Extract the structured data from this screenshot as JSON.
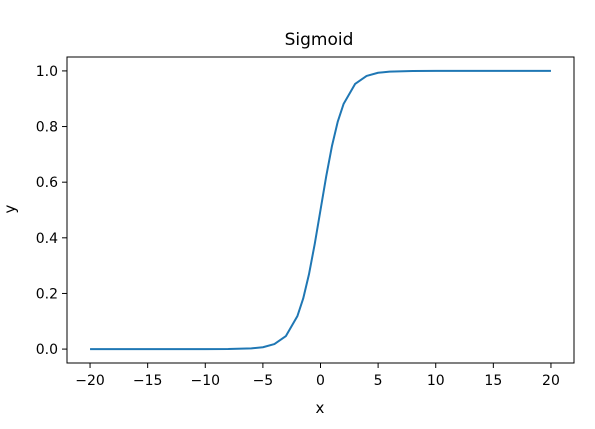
{
  "chart_data": {
    "type": "line",
    "title": "Sigmoid",
    "xlabel": "x",
    "ylabel": "y",
    "xlim": [
      -22,
      22
    ],
    "ylim": [
      -0.05,
      1.05
    ],
    "xticks": [
      -20,
      -15,
      -10,
      -5,
      0,
      5,
      10,
      15,
      20
    ],
    "xtick_labels": [
      "−20",
      "−15",
      "−10",
      "−5",
      "0",
      "5",
      "10",
      "15",
      "20"
    ],
    "yticks": [
      0.0,
      0.2,
      0.4,
      0.6,
      0.8,
      1.0
    ],
    "ytick_labels": [
      "0.0",
      "0.2",
      "0.4",
      "0.6",
      "0.8",
      "1.0"
    ],
    "grid": false,
    "series": [
      {
        "color": "#1f77b4",
        "x": [
          -20,
          -15,
          -10,
          -8,
          -6,
          -5,
          -4,
          -3,
          -2,
          -1.5,
          -1,
          -0.5,
          0,
          0.5,
          1,
          1.5,
          2,
          3,
          4,
          5,
          6,
          8,
          10,
          15,
          20
        ],
        "y": [
          0.0,
          0.0,
          0.0,
          0.0003,
          0.0025,
          0.0067,
          0.018,
          0.047,
          0.119,
          0.182,
          0.269,
          0.378,
          0.5,
          0.622,
          0.731,
          0.818,
          0.881,
          0.953,
          0.982,
          0.9933,
          0.9975,
          0.9997,
          1.0,
          1.0,
          1.0
        ]
      }
    ]
  }
}
